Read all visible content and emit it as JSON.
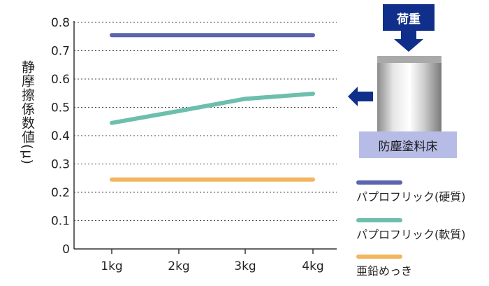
{
  "chart_data": {
    "type": "line",
    "categories": [
      "1kg",
      "2kg",
      "3kg",
      "4kg"
    ],
    "series": [
      {
        "name": "パプロフリック(硬質)",
        "values": [
          0.755,
          0.755,
          0.755,
          0.755
        ],
        "color": "#5b64ac"
      },
      {
        "name": "パプロフリック(軟質)",
        "values": [
          0.445,
          0.487,
          0.53,
          0.548
        ],
        "color": "#6dbfad"
      },
      {
        "name": "亜鉛めっき",
        "values": [
          0.245,
          0.245,
          0.245,
          0.245
        ],
        "color": "#f2b660"
      }
    ],
    "ylabel": "静摩擦係数値(μ)",
    "ylim": [
      0,
      0.8
    ],
    "yticks": [
      0,
      0.1,
      0.2,
      0.3,
      0.4,
      0.5,
      0.6,
      0.7,
      0.8
    ],
    "ytick_labels": [
      "0",
      "0.1",
      "0.2",
      "0.3",
      "0.4",
      "0.5",
      "0.6",
      "0.7",
      "0.8"
    ],
    "grid": true,
    "legend": "right"
  },
  "diagram": {
    "load_label": "荷重",
    "floor_label": "防塵塗料床",
    "navy": "#0f2f8a",
    "floor_color": "#b7bce6"
  }
}
